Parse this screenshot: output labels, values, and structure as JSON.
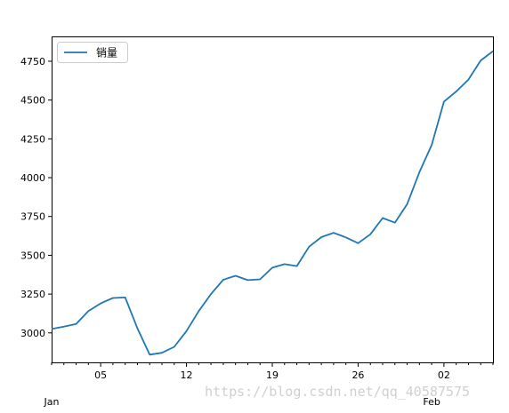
{
  "chart_data": {
    "type": "line",
    "title": "",
    "xlabel": "",
    "ylabel": "",
    "ylim": [
      2810,
      4910
    ],
    "yticks": [
      3000,
      3250,
      3500,
      3750,
      4000,
      4250,
      4500,
      4750
    ],
    "x": [
      "Jan 01",
      "Jan 02",
      "Jan 03",
      "Jan 04",
      "Jan 05",
      "Jan 06",
      "Jan 07",
      "Jan 08",
      "Jan 09",
      "Jan 10",
      "Jan 11",
      "Jan 12",
      "Jan 13",
      "Jan 14",
      "Jan 15",
      "Jan 16",
      "Jan 17",
      "Jan 18",
      "Jan 19",
      "Jan 20",
      "Jan 21",
      "Jan 22",
      "Jan 23",
      "Jan 24",
      "Jan 25",
      "Jan 26",
      "Jan 27",
      "Jan 28",
      "Jan 29",
      "Jan 30",
      "Jan 31",
      "Feb 01",
      "Feb 02",
      "Feb 03",
      "Feb 04",
      "Feb 05",
      "Feb 06"
    ],
    "series": [
      {
        "name": "销量",
        "values": [
          3025,
          3040,
          3058,
          3140,
          3190,
          3225,
          3228,
          3030,
          2860,
          2872,
          2910,
          3012,
          3140,
          3250,
          3342,
          3368,
          3340,
          3345,
          3420,
          3443,
          3430,
          3555,
          3617,
          3645,
          3615,
          3578,
          3635,
          3740,
          3710,
          3830,
          4035,
          4210,
          4490,
          4555,
          4632,
          4755,
          4815
        ]
      }
    ],
    "xtick_labels": [
      "05",
      "12",
      "19",
      "26",
      "02"
    ],
    "month_labels": [
      "Jan",
      "Feb"
    ],
    "legend": {
      "position": "top-left"
    },
    "grid": false,
    "color": "#1f77b4"
  },
  "watermark": "https://blog.csdn.net/qq_40587575"
}
